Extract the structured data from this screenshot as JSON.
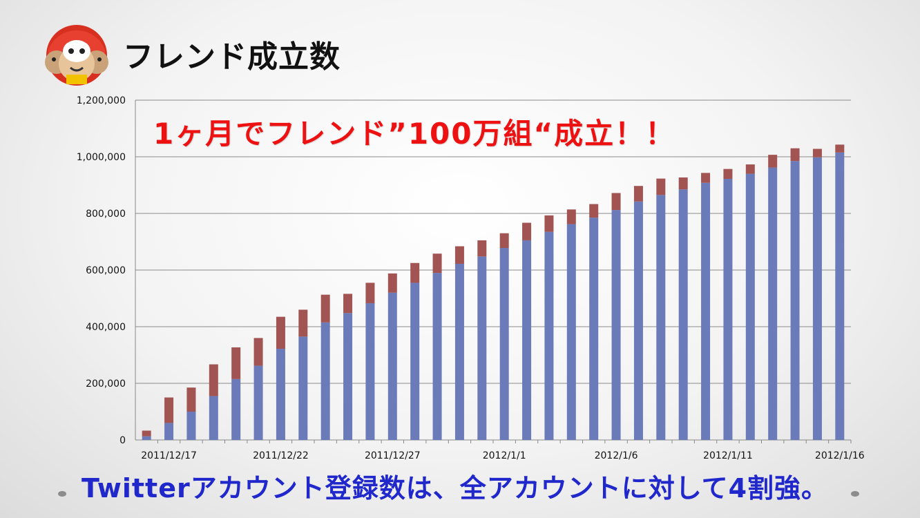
{
  "slide": {
    "title": "フレンド成立数",
    "headline": "1ヶ月でフレンド”100万組“成立！！",
    "footer": "Twitterアカウント登録数は、全アカウントに対して4割強。"
  },
  "colors": {
    "series_bottom": "#6b7ab8",
    "series_top": "#a15452",
    "headline": "#ee1111",
    "footer": "#2028cc"
  },
  "chart_data": {
    "type": "bar",
    "stacked": true,
    "categories": [
      "2011/12/16",
      "2011/12/17",
      "2011/12/18",
      "2011/12/19",
      "2011/12/20",
      "2011/12/21",
      "2011/12/22",
      "2011/12/23",
      "2011/12/24",
      "2011/12/25",
      "2011/12/26",
      "2011/12/27",
      "2011/12/28",
      "2011/12/29",
      "2011/12/30",
      "2011/12/31",
      "2012/1/1",
      "2012/1/2",
      "2012/1/3",
      "2012/1/4",
      "2012/1/5",
      "2012/1/6",
      "2012/1/7",
      "2012/1/8",
      "2012/1/9",
      "2012/1/10",
      "2012/1/11",
      "2012/1/12",
      "2012/1/13",
      "2012/1/14",
      "2012/1/15",
      "2012/1/16"
    ],
    "tick_labels": [
      "2011/12/17",
      "2011/12/22",
      "2011/12/27",
      "2012/1/1",
      "2012/1/6",
      "2012/1/11",
      "2012/1/16"
    ],
    "series": [
      {
        "values": [
          13000,
          60000,
          100000,
          155000,
          215000,
          262000,
          322000,
          365000,
          415000,
          448000,
          483000,
          520000,
          555000,
          590000,
          622000,
          648000,
          678000,
          705000,
          735000,
          762000,
          785000,
          812000,
          842000,
          865000,
          885000,
          908000,
          922000,
          940000,
          962000,
          985000,
          998000,
          1015000
        ]
      },
      {
        "values": [
          20000,
          90000,
          85000,
          112000,
          112000,
          98000,
          113000,
          95000,
          98000,
          68000,
          72000,
          68000,
          70000,
          68000,
          62000,
          57000,
          52000,
          62000,
          58000,
          52000,
          48000,
          60000,
          55000,
          58000,
          42000,
          35000,
          35000,
          33000,
          45000,
          45000,
          30000,
          28000
        ]
      }
    ],
    "y_ticks": [
      "0",
      "200,000",
      "400,000",
      "600,000",
      "800,000",
      "1,000,000",
      "1,200,000"
    ],
    "ylim": [
      0,
      1200000
    ],
    "grid": true,
    "xlabel": "",
    "ylabel": ""
  }
}
